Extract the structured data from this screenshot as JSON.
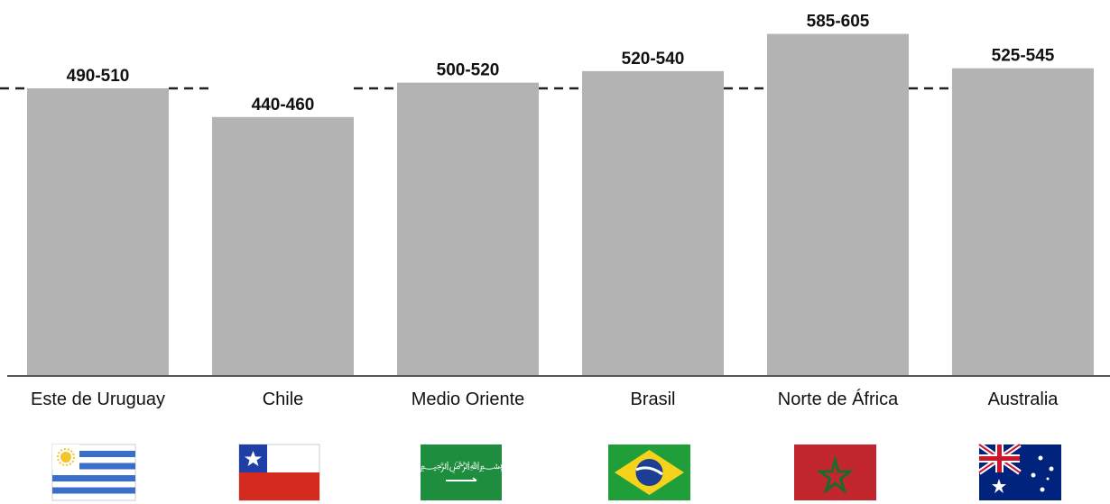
{
  "chart_data": {
    "type": "bar",
    "categories": [
      "Este de Uruguay",
      "Chile",
      "Medio Oriente",
      "Brasil",
      "Norte de África",
      "Australia"
    ],
    "values": [
      500,
      450,
      510,
      530,
      595,
      535
    ],
    "value_labels": [
      "490-510",
      "440-460",
      "500-520",
      "520-540",
      "585-605",
      "525-545"
    ],
    "reference_line": 500,
    "ylim": [
      0,
      620
    ],
    "grid": false,
    "title": "",
    "xlabel": "",
    "ylabel": "",
    "bar_color": "#b3b3b3",
    "flags": [
      "uruguay-flag-icon",
      "chile-flag-icon",
      "saudi-arabia-flag-icon",
      "brazil-flag-icon",
      "morocco-flag-icon",
      "australia-flag-icon"
    ]
  }
}
